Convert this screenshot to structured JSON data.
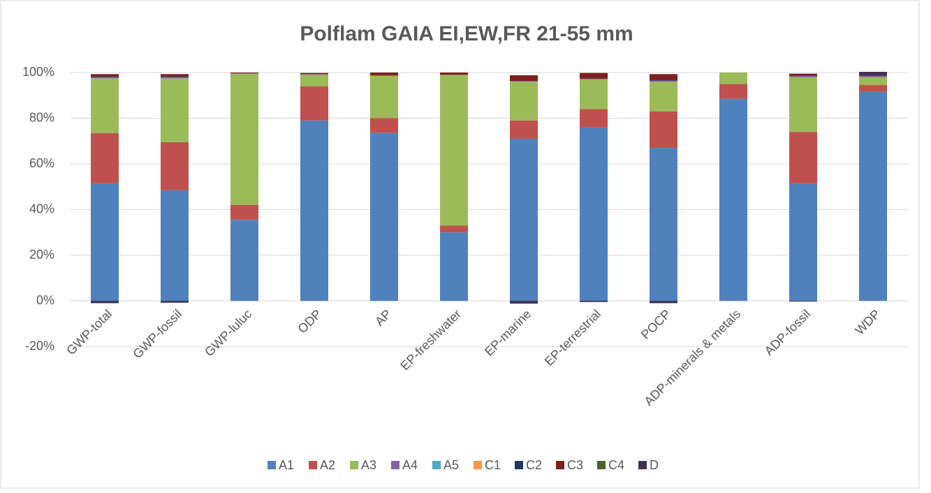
{
  "chart_data": {
    "type": "stacked_bar",
    "title": "Polflam GAIA EI,EW,FR 21-55 mm",
    "categories": [
      "GWP-total",
      "GWP-fossil",
      "GWP-luluc",
      "ODP",
      "AP",
      "EP-freshwater",
      "EP-marine",
      "EP-terrestrial",
      "POCP",
      "ADP-minerals & metals",
      "ADP-fossil",
      "WDP"
    ],
    "series": [
      {
        "name": "A1",
        "color": "#4f81bd",
        "values": [
          51.5,
          48.5,
          35.5,
          79,
          73.5,
          30,
          71,
          76,
          67,
          88.5,
          51.5,
          91.5
        ]
      },
      {
        "name": "A2",
        "color": "#c0504d",
        "values": [
          22,
          21,
          6.5,
          15,
          6.5,
          3,
          8,
          8,
          16,
          6.5,
          22.5,
          3
        ]
      },
      {
        "name": "A3",
        "color": "#9bbb59",
        "values": [
          24,
          28,
          57.5,
          5,
          18.5,
          66,
          17,
          13,
          13,
          5,
          24,
          3.5
        ]
      },
      {
        "name": "A4",
        "color": "#8064a2",
        "values": [
          0.5,
          0.5,
          0.2,
          0.3,
          0.3,
          0,
          0.3,
          0.3,
          0.5,
          0,
          0.5,
          0.5
        ]
      },
      {
        "name": "A5",
        "color": "#4bacc6",
        "values": [
          0,
          0,
          0,
          0,
          0,
          0,
          0,
          0,
          0,
          0,
          0,
          0
        ]
      },
      {
        "name": "C1",
        "color": "#f79646",
        "values": [
          0,
          0,
          0,
          0,
          0,
          0,
          0,
          0,
          0,
          0,
          0,
          0
        ]
      },
      {
        "name": "C2",
        "color": "#1f3864",
        "values": [
          0.3,
          0.3,
          0,
          0,
          0,
          0,
          0,
          0,
          0.3,
          0,
          0,
          0
        ]
      },
      {
        "name": "C3",
        "color": "#7f1f1f",
        "values": [
          1,
          1,
          0.3,
          0.5,
          1.2,
          1,
          2.5,
          2.5,
          2.5,
          0,
          1,
          0.3
        ]
      },
      {
        "name": "C4",
        "color": "#4f6228",
        "values": [
          0,
          0,
          0,
          0,
          0,
          0,
          0,
          0,
          0,
          0,
          0,
          0
        ]
      },
      {
        "name": "D",
        "color": "#3f3151",
        "values": [
          -1,
          -0.8,
          0,
          0,
          0,
          0,
          -1.2,
          -0.5,
          -1,
          0,
          -0.3,
          1.5
        ]
      }
    ],
    "ylim": [
      -20,
      100
    ],
    "yticks": [
      {
        "value": -20,
        "label": "-20%"
      },
      {
        "value": 0,
        "label": "0%"
      },
      {
        "value": 20,
        "label": "20%"
      },
      {
        "value": 40,
        "label": "40%"
      },
      {
        "value": 60,
        "label": "60%"
      },
      {
        "value": 80,
        "label": "80%"
      },
      {
        "value": 100,
        "label": "100%"
      }
    ],
    "grid": true,
    "legend": "bottom"
  }
}
